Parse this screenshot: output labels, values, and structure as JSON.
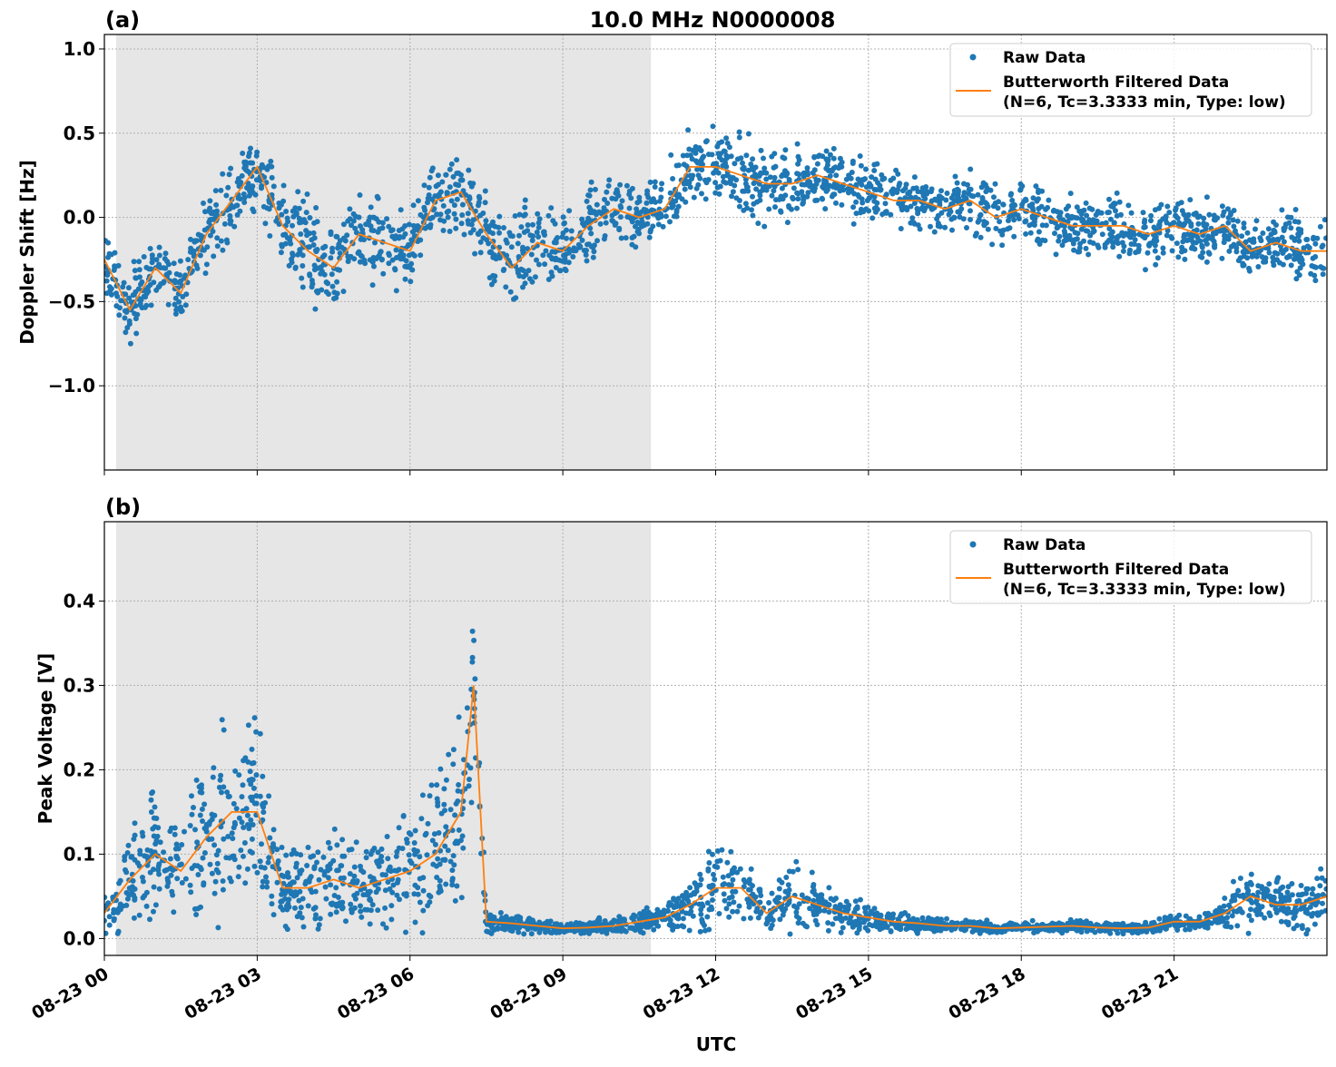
{
  "title": "10.0 MHz N0000008",
  "xlabel": "UTC",
  "chart_data": [
    {
      "type": "scatter",
      "panel_label": "(a)",
      "ylabel": "Doppler Shift [Hz]",
      "xlim_hours": [
        0,
        24
      ],
      "ylim": [
        -1.5,
        1.086
      ],
      "yticks": [
        1.0,
        0.5,
        0.0,
        -0.5,
        -1.0
      ],
      "ytick_labels": [
        "1.0",
        "0.5",
        "0.0",
        "−0.5",
        "−1.0"
      ],
      "xticks_hours": [
        0,
        3,
        6,
        9,
        12,
        15,
        18,
        21
      ],
      "xtick_labels": [
        "08-23 00",
        "08-23 03",
        "08-23 06",
        "08-23 09",
        "08-23 12",
        "08-23 15",
        "08-23 18",
        "08-23 21"
      ],
      "grid": true,
      "shaded_night_hours": [
        0.23,
        10.73
      ],
      "legend": {
        "placement": "upper right",
        "entries": [
          "Raw Data",
          "Butterworth Filtered Data",
          "(N=6, Tc=3.3333 min, Type: low)"
        ]
      },
      "x_hours": [
        0,
        0.5,
        1,
        1.5,
        2,
        2.5,
        3,
        3.5,
        4,
        4.5,
        5,
        5.5,
        6,
        6.5,
        7,
        7.5,
        8,
        8.5,
        9,
        9.5,
        10,
        10.5,
        11,
        11.5,
        12,
        12.5,
        13,
        13.5,
        14,
        14.5,
        15,
        15.5,
        16,
        16.5,
        17,
        17.5,
        18,
        18.5,
        19,
        19.5,
        20,
        20.5,
        21,
        21.5,
        22,
        22.5,
        23,
        23.5,
        24
      ],
      "filtered": [
        -0.25,
        -0.55,
        -0.3,
        -0.45,
        -0.1,
        0.1,
        0.3,
        -0.05,
        -0.2,
        -0.3,
        -0.1,
        -0.15,
        -0.2,
        0.1,
        0.15,
        -0.1,
        -0.3,
        -0.15,
        -0.2,
        -0.05,
        0.05,
        0.0,
        0.05,
        0.3,
        0.3,
        0.25,
        0.2,
        0.2,
        0.25,
        0.2,
        0.15,
        0.1,
        0.1,
        0.05,
        0.1,
        0.0,
        0.05,
        0.0,
        -0.05,
        -0.05,
        -0.05,
        -0.1,
        -0.05,
        -0.1,
        -0.05,
        -0.2,
        -0.15,
        -0.2,
        -0.2
      ],
      "raw_spread": [
        0.3,
        0.3,
        0.35,
        0.3,
        0.3,
        0.3,
        0.3,
        0.35,
        0.45,
        0.4,
        0.35,
        0.35,
        0.3,
        0.3,
        0.3,
        0.35,
        0.4,
        0.35,
        0.3,
        0.35,
        0.25,
        0.25,
        0.3,
        0.3,
        0.3,
        0.3,
        0.3,
        0.3,
        0.25,
        0.25,
        0.25,
        0.25,
        0.25,
        0.25,
        0.25,
        0.25,
        0.25,
        0.25,
        0.25,
        0.25,
        0.25,
        0.25,
        0.25,
        0.25,
        0.25,
        0.25,
        0.25,
        0.3,
        0.3
      ]
    },
    {
      "type": "scatter",
      "panel_label": "(b)",
      "ylabel": "Peak Voltage [V]",
      "xlim_hours": [
        0,
        24
      ],
      "ylim": [
        -0.02,
        0.494
      ],
      "yticks": [
        0.0,
        0.1,
        0.2,
        0.3,
        0.4
      ],
      "ytick_labels": [
        "0.0",
        "0.1",
        "0.2",
        "0.3",
        "0.4"
      ],
      "xticks_hours": [
        0,
        3,
        6,
        9,
        12,
        15,
        18,
        21
      ],
      "xtick_labels": [
        "08-23 00",
        "08-23 03",
        "08-23 06",
        "08-23 09",
        "08-23 12",
        "08-23 15",
        "08-23 18",
        "08-23 21"
      ],
      "grid": true,
      "shaded_night_hours": [
        0.23,
        10.73
      ],
      "legend": {
        "placement": "upper right",
        "entries": [
          "Raw Data",
          "Butterworth Filtered Data",
          "(N=6, Tc=3.3333 min, Type: low)"
        ]
      },
      "x_hours": [
        0,
        0.5,
        1,
        1.5,
        2,
        2.5,
        3,
        3.5,
        4,
        4.5,
        5,
        5.5,
        6,
        6.5,
        7,
        7.25,
        7.5,
        8,
        8.5,
        9,
        9.5,
        10,
        10.5,
        11,
        11.5,
        12,
        12.5,
        13,
        13.5,
        14,
        14.5,
        15,
        15.5,
        16,
        16.5,
        17,
        17.5,
        18,
        18.5,
        19,
        19.5,
        20,
        20.5,
        21,
        21.5,
        22,
        22.5,
        23,
        23.5,
        24
      ],
      "filtered": [
        0.03,
        0.07,
        0.1,
        0.08,
        0.12,
        0.15,
        0.15,
        0.06,
        0.06,
        0.07,
        0.06,
        0.07,
        0.08,
        0.1,
        0.15,
        0.3,
        0.02,
        0.018,
        0.015,
        0.012,
        0.013,
        0.015,
        0.02,
        0.025,
        0.04,
        0.06,
        0.06,
        0.03,
        0.05,
        0.04,
        0.03,
        0.025,
        0.02,
        0.018,
        0.015,
        0.015,
        0.012,
        0.013,
        0.014,
        0.015,
        0.013,
        0.012,
        0.013,
        0.02,
        0.02,
        0.03,
        0.05,
        0.04,
        0.04,
        0.05
      ],
      "raw_spread": [
        0.04,
        0.08,
        0.12,
        0.09,
        0.14,
        0.18,
        0.15,
        0.07,
        0.08,
        0.08,
        0.07,
        0.08,
        0.1,
        0.14,
        0.15,
        0.17,
        0.02,
        0.012,
        0.012,
        0.01,
        0.01,
        0.015,
        0.02,
        0.02,
        0.04,
        0.08,
        0.06,
        0.03,
        0.06,
        0.04,
        0.03,
        0.025,
        0.02,
        0.015,
        0.012,
        0.012,
        0.01,
        0.01,
        0.01,
        0.012,
        0.01,
        0.01,
        0.01,
        0.015,
        0.015,
        0.03,
        0.05,
        0.04,
        0.04,
        0.05
      ]
    }
  ],
  "colors": {
    "raw": "#1f77b4",
    "filtered": "#ff7f0e",
    "night_shade": "#e6e6e6",
    "grid": "#b0b0b0"
  }
}
